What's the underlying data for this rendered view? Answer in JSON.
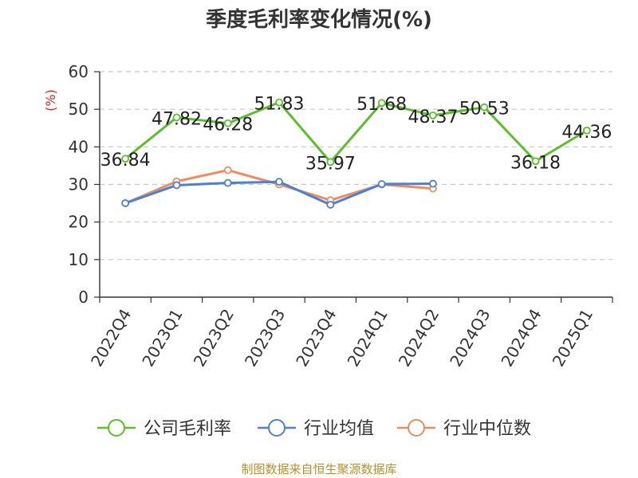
{
  "chart_data": {
    "type": "line",
    "title": "季度毛利率变化情况(%)",
    "ylabel": "(%)",
    "ylim": [
      0,
      60
    ],
    "yticks": [
      0,
      10,
      20,
      30,
      40,
      50,
      60
    ],
    "grid": true,
    "legend_position": "bottom",
    "categories": [
      "2022Q4",
      "2023Q1",
      "2023Q2",
      "2023Q3",
      "2023Q4",
      "2024Q1",
      "2024Q2",
      "2024Q3",
      "2024Q4",
      "2025Q1"
    ],
    "series": [
      {
        "name": "公司毛利率",
        "color": "#5cbf2a",
        "values": [
          36.84,
          47.82,
          46.28,
          51.83,
          35.97,
          51.68,
          48.37,
          50.53,
          36.18,
          44.36
        ],
        "labels": [
          "36.84",
          "47.82",
          "46.28",
          "51.83",
          "35.97",
          "51.68",
          "48.37",
          "50.53",
          "36.18",
          "44.36"
        ]
      },
      {
        "name": "行业均值",
        "color": "#4a7fdc",
        "values": [
          25.0,
          29.8,
          30.4,
          30.7,
          24.6,
          30.1,
          30.2,
          null,
          null,
          null
        ]
      },
      {
        "name": "行业中位数",
        "color": "#f08c5a",
        "values": [
          25.0,
          30.8,
          33.8,
          30.0,
          25.8,
          30.0,
          28.9,
          null,
          null,
          null
        ]
      }
    ],
    "source": "制图数据来自恒生聚源数据库"
  }
}
